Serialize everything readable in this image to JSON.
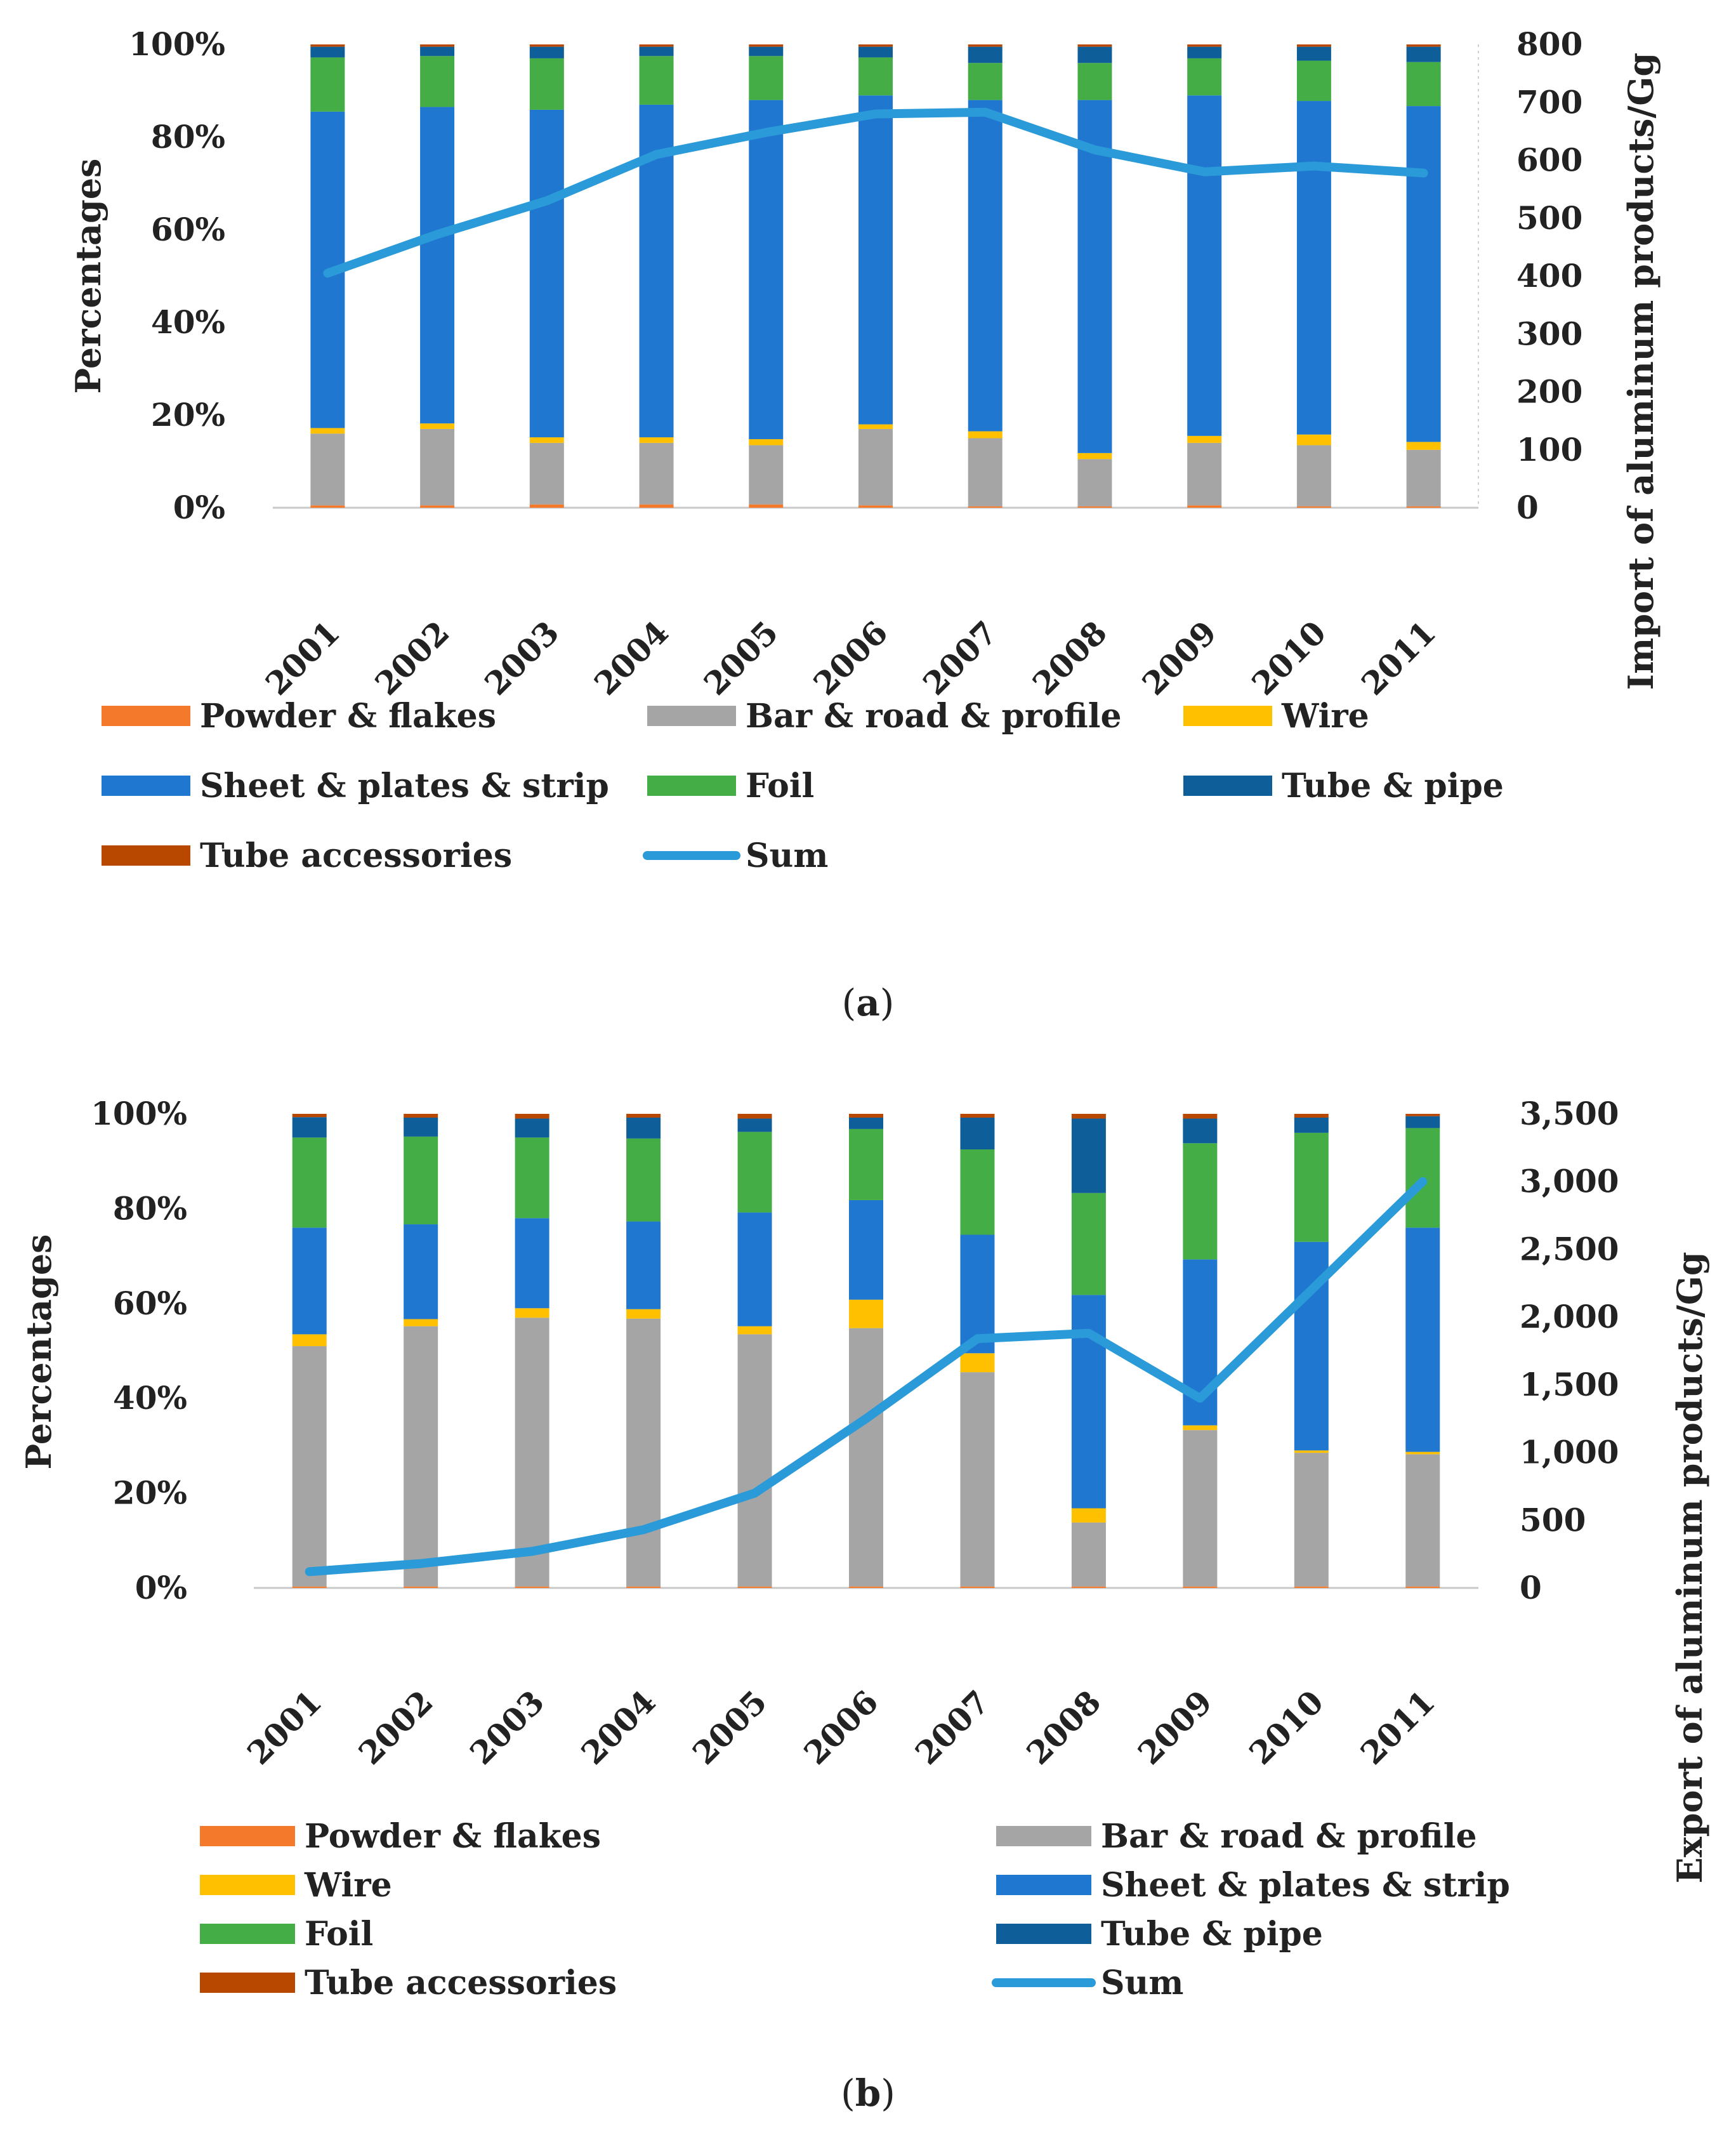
{
  "chart_data": [
    {
      "id": "a",
      "type": "bar",
      "stacked": true,
      "percent_stacked": true,
      "panel_label_open": "(",
      "panel_label_letter": "a",
      "panel_label_close": ")",
      "categories": [
        "2001",
        "2002",
        "2003",
        "2004",
        "2005",
        "2006",
        "2007",
        "2008",
        "2009",
        "2010",
        "2011"
      ],
      "y_left": {
        "label": "Percentages",
        "ticks": [
          "0%",
          "20%",
          "40%",
          "60%",
          "80%",
          "100%"
        ],
        "range": [
          0,
          100
        ]
      },
      "y_right": {
        "label": "Import of aluminum products/Gg",
        "ticks": [
          "0",
          "100",
          "200",
          "300",
          "400",
          "500",
          "600",
          "700",
          "800"
        ],
        "range": [
          0,
          800
        ]
      },
      "series": [
        {
          "name": "Powder & flakes",
          "color": "#F4792B",
          "values": [
            0.5,
            0.5,
            0.7,
            0.7,
            0.7,
            0.5,
            0.3,
            0.3,
            0.5,
            0.3,
            0.3
          ]
        },
        {
          "name": "Bar & road & profile",
          "color": "#A5A5A5",
          "values": [
            15.5,
            16.5,
            13.3,
            13.3,
            12.8,
            16.5,
            14.7,
            10.2,
            13.5,
            13.2,
            12.2
          ]
        },
        {
          "name": "Wire",
          "color": "#FFC000",
          "values": [
            1.2,
            1.2,
            1.2,
            1.2,
            1.3,
            1.0,
            1.5,
            1.3,
            1.5,
            2.3,
            1.7
          ]
        },
        {
          "name": "Sheet & plates & strip",
          "color": "#1F77D0",
          "values": [
            68.3,
            68.3,
            70.7,
            71.8,
            73.2,
            71.0,
            71.5,
            76.2,
            73.5,
            72.0,
            72.5
          ]
        },
        {
          "name": "Foil",
          "color": "#45AD45",
          "values": [
            11.7,
            11.0,
            11.1,
            10.5,
            9.5,
            8.2,
            8.0,
            8.0,
            8.0,
            8.7,
            9.5
          ]
        },
        {
          "name": "Tube & pipe",
          "color": "#0E5E99",
          "values": [
            2.3,
            2.0,
            2.5,
            2.0,
            2.0,
            2.3,
            3.5,
            3.5,
            2.5,
            3.0,
            3.3
          ]
        },
        {
          "name": "Tube accessories",
          "color": "#B84700",
          "values": [
            0.5,
            0.5,
            0.5,
            0.5,
            0.5,
            0.5,
            0.5,
            0.5,
            0.5,
            0.5,
            0.5
          ]
        }
      ],
      "sum": {
        "name": "Sum",
        "color": "#2A9AD8",
        "axis": "right",
        "values": [
          405,
          472,
          530,
          610,
          648,
          680,
          683,
          618,
          580,
          590,
          578
        ]
      },
      "legend": {
        "layout": "3-columns",
        "position": "bottom"
      }
    },
    {
      "id": "b",
      "type": "bar",
      "stacked": true,
      "percent_stacked": true,
      "panel_label_open": "(",
      "panel_label_letter": "b",
      "panel_label_close": ")",
      "categories": [
        "2001",
        "2002",
        "2003",
        "2004",
        "2005",
        "2006",
        "2007",
        "2008",
        "2009",
        "2010",
        "2011"
      ],
      "y_left": {
        "label": "Percentages",
        "ticks": [
          "0%",
          "20%",
          "40%",
          "60%",
          "80%",
          "100%"
        ],
        "range": [
          0,
          100
        ]
      },
      "y_right": {
        "label": "Export of aluminum products/Gg",
        "ticks": [
          "0",
          "500",
          "1,000",
          "1,500",
          "2,000",
          "2,500",
          "3,000",
          "3,500"
        ],
        "range": [
          0,
          3500
        ]
      },
      "series": [
        {
          "name": "Powder & flakes",
          "color": "#F4792B",
          "values": [
            0.3,
            0.3,
            0.3,
            0.3,
            0.3,
            0.3,
            0.3,
            0.3,
            0.3,
            0.3,
            0.3
          ]
        },
        {
          "name": "Bar & road & profile",
          "color": "#A5A5A5",
          "values": [
            50.7,
            54.9,
            56.7,
            56.5,
            53.2,
            54.5,
            45.2,
            13.5,
            33.0,
            28.2,
            27.9
          ]
        },
        {
          "name": "Wire",
          "color": "#FFC000",
          "values": [
            2.5,
            1.5,
            2.0,
            2.0,
            1.7,
            6.0,
            4.0,
            3.0,
            1.0,
            0.5,
            0.5
          ]
        },
        {
          "name": "Sheet & plates & strip",
          "color": "#1F77D0",
          "values": [
            22.5,
            20.0,
            19.0,
            18.5,
            24.0,
            21.0,
            25.0,
            45.0,
            35.0,
            44.0,
            47.3
          ]
        },
        {
          "name": "Foil",
          "color": "#45AD45",
          "values": [
            19.0,
            18.5,
            17.0,
            17.5,
            17.0,
            15.0,
            18.0,
            21.5,
            24.5,
            23.0,
            21.0
          ]
        },
        {
          "name": "Tube & pipe",
          "color": "#0E5E99",
          "values": [
            4.3,
            4.0,
            4.0,
            4.4,
            2.8,
            2.4,
            6.7,
            15.7,
            5.2,
            3.2,
            2.5
          ]
        },
        {
          "name": "Tube accessories",
          "color": "#B84700",
          "values": [
            0.7,
            0.8,
            1.0,
            0.8,
            1.0,
            0.8,
            0.8,
            1.0,
            1.0,
            0.8,
            0.5
          ]
        }
      ],
      "sum": {
        "name": "Sum",
        "color": "#2A9AD8",
        "axis": "right",
        "values": [
          120,
          180,
          270,
          430,
          700,
          1250,
          1840,
          1880,
          1400,
          2200,
          3000
        ]
      },
      "legend": {
        "layout": "2-columns",
        "position": "bottom"
      }
    }
  ]
}
